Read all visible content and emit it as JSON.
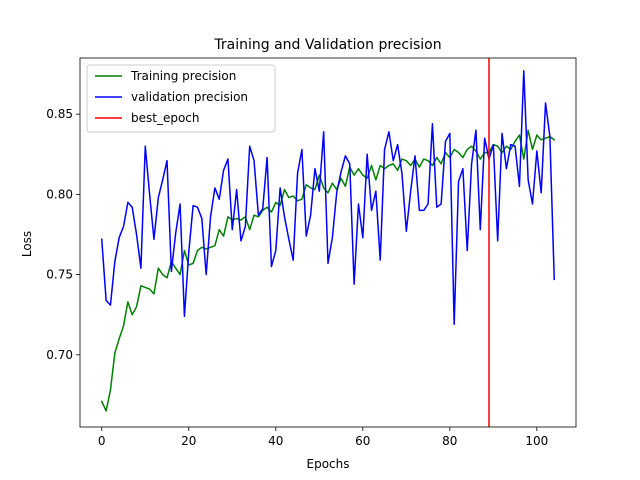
{
  "chart_data": {
    "type": "line",
    "title": "Training and Validation precision",
    "xlabel": "Epochs",
    "ylabel": "Loss",
    "xlim": [
      -5,
      109
    ],
    "ylim": [
      0.655,
      0.885
    ],
    "xticks": [
      0,
      20,
      40,
      60,
      80,
      100
    ],
    "yticks": [
      0.7,
      0.75,
      0.8,
      0.85
    ],
    "xtick_labels": [
      "0",
      "20",
      "40",
      "60",
      "80",
      "100"
    ],
    "ytick_labels": [
      "0.70",
      "0.75",
      "0.80",
      "0.85"
    ],
    "grid": false,
    "legend_position": "upper-left",
    "series": [
      {
        "name": "Training precision",
        "color": "#008000",
        "values": [
          0.671,
          0.665,
          0.678,
          0.701,
          0.71,
          0.718,
          0.733,
          0.725,
          0.73,
          0.743,
          0.742,
          0.741,
          0.738,
          0.754,
          0.75,
          0.748,
          0.758,
          0.754,
          0.75,
          0.765,
          0.756,
          0.757,
          0.765,
          0.767,
          0.766,
          0.767,
          0.768,
          0.778,
          0.774,
          0.786,
          0.784,
          0.785,
          0.784,
          0.786,
          0.778,
          0.787,
          0.786,
          0.79,
          0.792,
          0.789,
          0.795,
          0.793,
          0.803,
          0.798,
          0.799,
          0.796,
          0.797,
          0.806,
          0.804,
          0.803,
          0.812,
          0.804,
          0.801,
          0.807,
          0.803,
          0.81,
          0.805,
          0.817,
          0.812,
          0.816,
          0.812,
          0.81,
          0.818,
          0.809,
          0.818,
          0.816,
          0.818,
          0.819,
          0.815,
          0.822,
          0.821,
          0.818,
          0.822,
          0.817,
          0.822,
          0.821,
          0.818,
          0.823,
          0.819,
          0.826,
          0.823,
          0.828,
          0.826,
          0.823,
          0.828,
          0.83,
          0.827,
          0.822,
          0.826,
          0.826,
          0.831,
          0.83,
          0.826,
          0.83,
          0.828,
          0.833,
          0.837,
          0.822,
          0.84,
          0.828,
          0.837,
          0.834,
          0.835,
          0.836,
          0.834
        ]
      },
      {
        "name": "validation precision",
        "color": "#0000ff",
        "values": [
          0.772,
          0.734,
          0.731,
          0.758,
          0.773,
          0.78,
          0.795,
          0.792,
          0.775,
          0.754,
          0.83,
          0.8,
          0.772,
          0.798,
          0.809,
          0.821,
          0.752,
          0.776,
          0.794,
          0.724,
          0.764,
          0.793,
          0.792,
          0.785,
          0.75,
          0.786,
          0.804,
          0.797,
          0.815,
          0.822,
          0.778,
          0.803,
          0.771,
          0.78,
          0.83,
          0.821,
          0.787,
          0.791,
          0.823,
          0.755,
          0.765,
          0.804,
          0.786,
          0.772,
          0.759,
          0.813,
          0.828,
          0.774,
          0.787,
          0.816,
          0.802,
          0.839,
          0.757,
          0.773,
          0.801,
          0.814,
          0.824,
          0.819,
          0.744,
          0.794,
          0.773,
          0.825,
          0.79,
          0.802,
          0.759,
          0.828,
          0.839,
          0.821,
          0.831,
          0.813,
          0.777,
          0.802,
          0.824,
          0.79,
          0.79,
          0.794,
          0.844,
          0.792,
          0.794,
          0.833,
          0.838,
          0.719,
          0.808,
          0.816,
          0.765,
          0.819,
          0.84,
          0.778,
          0.835,
          0.822,
          0.831,
          0.771,
          0.838,
          0.816,
          0.831,
          0.83,
          0.805,
          0.877,
          0.809,
          0.794,
          0.827,
          0.801,
          0.857,
          0.836,
          0.747
        ]
      },
      {
        "name": "best_epoch",
        "color": "#ff0000",
        "x": 89
      }
    ]
  }
}
